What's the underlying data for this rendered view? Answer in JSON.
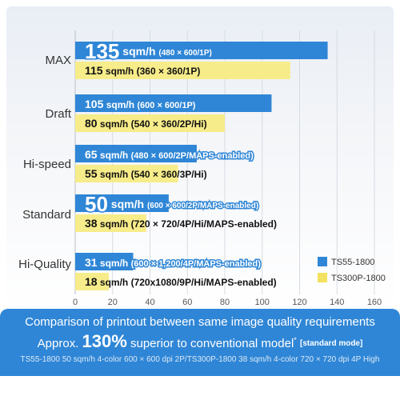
{
  "chart_data": {
    "type": "bar",
    "orientation": "horizontal",
    "categories": [
      "MAX",
      "Draft",
      "Hi-speed",
      "Standard",
      "Hi-Quality"
    ],
    "series": [
      {
        "name": "TS55-1800",
        "color": "#2f86d6",
        "values": [
          135,
          105,
          65,
          50,
          31
        ],
        "value_labels": [
          "135",
          "105",
          "65",
          "50",
          "31"
        ],
        "unit": "sqm/h",
        "specs": [
          "(480 × 600/1P)",
          "(600 × 600/1P)",
          "(480 × 600/2P/MAPS-enabled)",
          "(600 × 600/2P/MAPS-enabled)",
          "(600 × 1,200/4P/MAPS-enabled)"
        ]
      },
      {
        "name": "TS300P-1800",
        "color": "#f7ec8a",
        "values": [
          115,
          80,
          55,
          38,
          18
        ],
        "value_labels": [
          "115",
          "80",
          "55",
          "38",
          "18"
        ],
        "unit": "sqm/h",
        "specs": [
          "(360 × 360/1P)",
          "(540 × 360/2P/Hi)",
          "(540 × 360/3P/Hi)",
          "(720 × 720/4P/Hi/MAPS-enabled)",
          "(720x1080/9P/Hi/MAPS-enabled)"
        ]
      }
    ],
    "xlim": [
      0,
      160
    ],
    "xticks": [
      "0",
      "20",
      "40",
      "60",
      "80",
      "100",
      "120",
      "140",
      "160"
    ],
    "legend_position": "bottom-right",
    "grid": true
  },
  "footer": {
    "line1": "Comparison of printout between same image quality requirements",
    "approx": "Approx.",
    "percent": "130",
    "percent_sign": "%",
    "superior": "superior to conventional model",
    "asterisk": "*",
    "standard_mode": "[standard mode]",
    "line3": "TS55-1800 50 sqm/h 4-color 600 × 600 dpi 2P/TS300P-1800 38 sqm/h 4-color 720 × 720 dpi 4P High"
  },
  "colors": {
    "footer_bg": "#2f86d6",
    "grid": "#d6dbe2",
    "axis_text": "#555555"
  }
}
